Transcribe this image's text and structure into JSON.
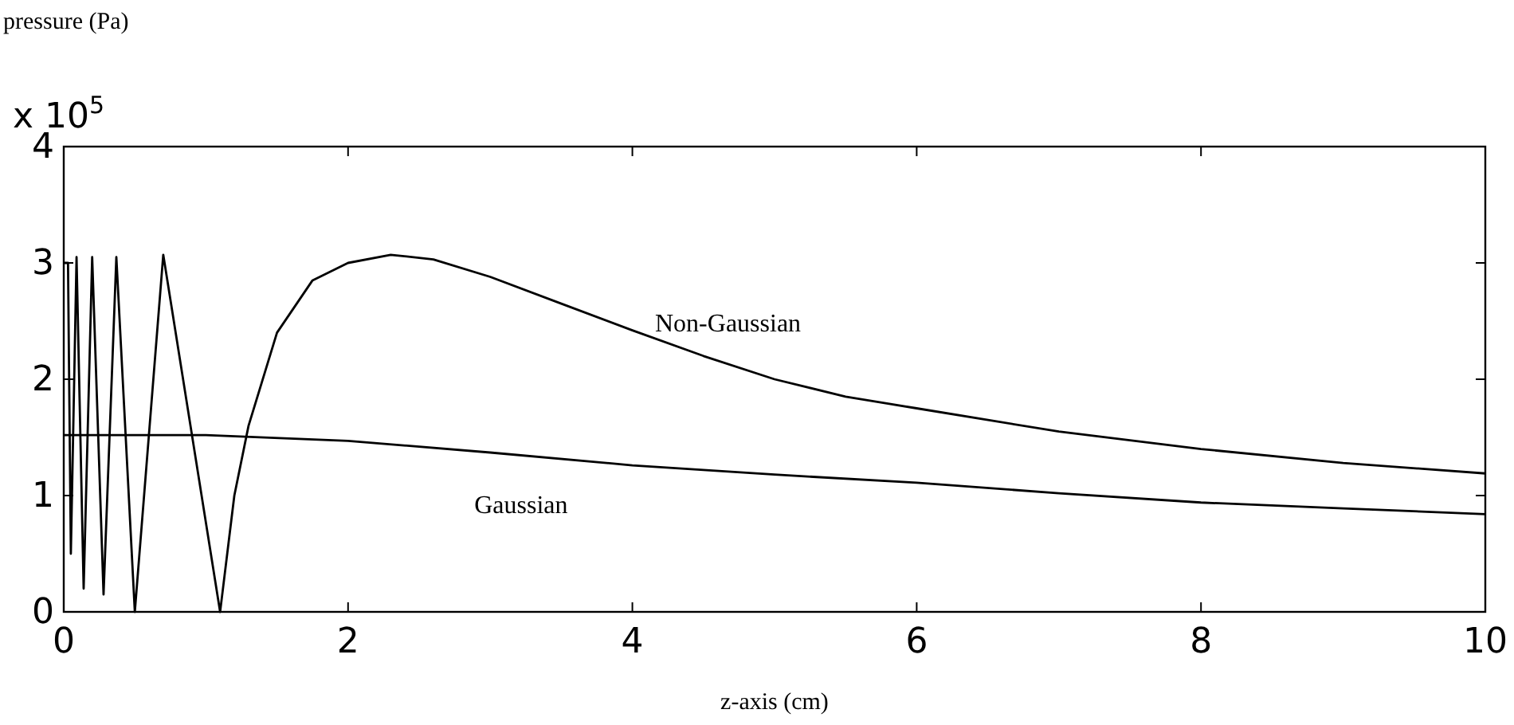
{
  "chart_data": {
    "type": "line",
    "ylabel": "pressure (Pa)",
    "xlabel": "z-axis (cm)",
    "annotations": [
      "x 10$^{5}$"
    ],
    "xlim": [
      0,
      10
    ],
    "xticks": [
      0,
      2,
      4,
      6,
      8,
      10
    ],
    "ylim": [
      0,
      4
    ],
    "yticks": [
      0,
      1,
      2,
      3,
      4
    ],
    "grid": false,
    "legend": false,
    "marker": "none",
    "line_style": "solid",
    "series": [
      {
        "name": "Non-Gaussian",
        "color": "#000000",
        "x": [
          0,
          0.03,
          0.05,
          0.09,
          0.14,
          0.2,
          0.28,
          0.37,
          0.5,
          0.7,
          1.1,
          1.2,
          1.3,
          1.5,
          1.75,
          2,
          2.3,
          2.6,
          3,
          3.5,
          4,
          4.5,
          5,
          5.5,
          6,
          7,
          8,
          9,
          10
        ],
        "values": [
          3.0,
          3.0,
          0.5,
          3.05,
          0.2,
          3.05,
          0.15,
          3.05,
          0,
          3.07,
          0,
          1.0,
          1.6,
          2.4,
          2.85,
          3.0,
          3.07,
          3.03,
          2.88,
          2.65,
          2.42,
          2.2,
          2.0,
          1.85,
          1.75,
          1.55,
          1.4,
          1.28,
          1.19
        ]
      },
      {
        "name": "Gaussian",
        "color": "#000000",
        "x": [
          0,
          1,
          2,
          3,
          4,
          5,
          6,
          7,
          8,
          9,
          10
        ],
        "values": [
          1.52,
          1.52,
          1.47,
          1.37,
          1.26,
          1.18,
          1.11,
          1.02,
          0.94,
          0.89,
          0.84
        ]
      }
    ]
  }
}
